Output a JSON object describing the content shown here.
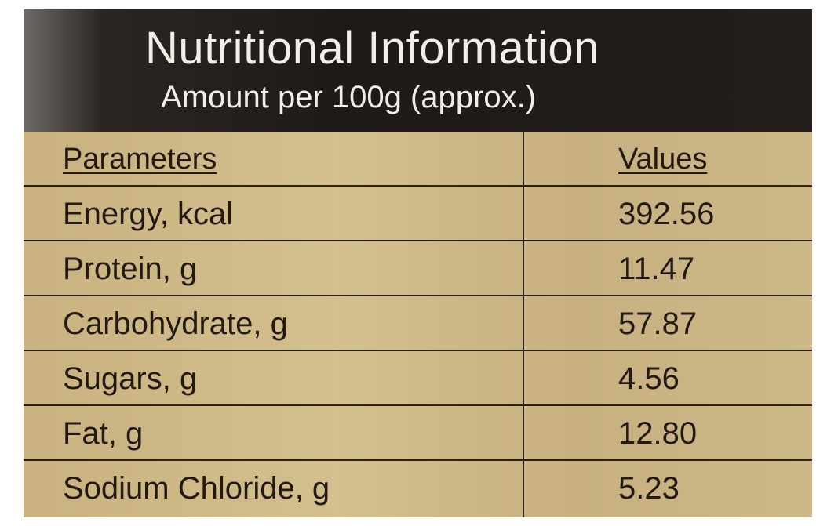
{
  "header": {
    "title": "Nutritional Information",
    "subtitle": "Amount per 100g (approx.)"
  },
  "table": {
    "columns": [
      "Parameters",
      "Values"
    ],
    "rows": [
      [
        "Energy, kcal",
        "392.56"
      ],
      [
        "Protein, g",
        "11.47"
      ],
      [
        "Carbohydrate, g",
        "57.87"
      ],
      [
        "Sugars, g",
        "4.56"
      ],
      [
        "Fat, g",
        "12.80"
      ],
      [
        "Sodium Chloride, g",
        "5.23"
      ]
    ]
  }
}
